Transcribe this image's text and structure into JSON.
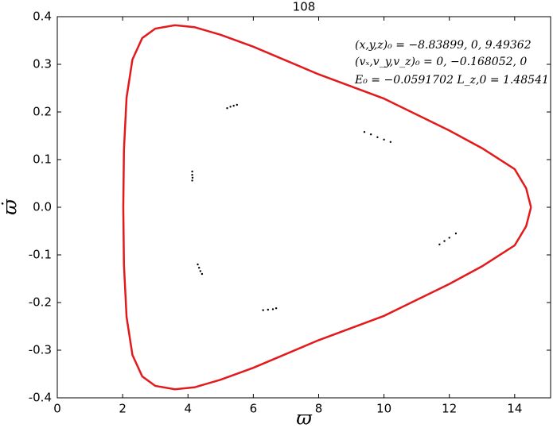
{
  "chart_data": {
    "type": "line",
    "title": "108",
    "x_label": "ϖ",
    "y_label": "ϖ̇",
    "annotations": [
      "(x,y,z)₀ = −8.83899, 0, 9.49362",
      "(vₓ,v_y,v_z)₀ = 0, −0.168052, 0",
      "E₀ = −0.0591702   L_z,0 = 1.48541"
    ],
    "xlim": [
      0,
      15.1
    ],
    "ylim": [
      -0.4,
      0.4
    ],
    "xticks": [
      0,
      2,
      4,
      6,
      8,
      10,
      12,
      14
    ],
    "yticks": [
      -0.4,
      -0.3,
      -0.2,
      -0.1,
      {
        "value": 0,
        "label": "0.0"
      },
      0.1,
      0.2,
      0.3,
      0.4
    ],
    "series": [
      {
        "type": "line",
        "color": "#e31a1c",
        "x": [
          14.5,
          14.35,
          14,
          13,
          12,
          10,
          8,
          6,
          5,
          4.2,
          3.6,
          3.0,
          2.6,
          2.3,
          2.12,
          2.04,
          2.02,
          2.04,
          2.12,
          2.3,
          2.6,
          3.0,
          3.6,
          4.2,
          5,
          6,
          8,
          10,
          12,
          13,
          14,
          14.35,
          14.5
        ],
        "values": [
          0,
          0.04,
          0.08,
          0.124,
          0.161,
          0.228,
          0.279,
          0.337,
          0.362,
          0.378,
          0.382,
          0.375,
          0.355,
          0.31,
          0.23,
          0.12,
          0,
          -0.12,
          -0.23,
          -0.31,
          -0.355,
          -0.375,
          -0.382,
          -0.378,
          -0.362,
          -0.337,
          -0.279,
          -0.228,
          -0.161,
          -0.124,
          -0.08,
          -0.04,
          0
        ]
      },
      {
        "type": "scatter",
        "color": "#000000",
        "x": [
          5.2,
          5.3,
          5.4,
          5.5,
          9.4,
          9.6,
          9.8,
          10.0,
          10.2,
          4.13,
          4.13,
          4.14,
          4.13,
          11.7,
          11.85,
          12.0,
          12.2,
          4.3,
          4.34,
          4.38,
          4.43,
          6.3,
          6.45,
          6.6,
          6.7
        ],
        "values": [
          0.208,
          0.211,
          0.213,
          0.215,
          0.158,
          0.153,
          0.147,
          0.142,
          0.137,
          0.075,
          0.068,
          0.062,
          0.056,
          -0.078,
          -0.071,
          -0.064,
          -0.055,
          -0.12,
          -0.127,
          -0.134,
          -0.14,
          -0.216,
          -0.215,
          -0.214,
          -0.212
        ]
      }
    ]
  }
}
